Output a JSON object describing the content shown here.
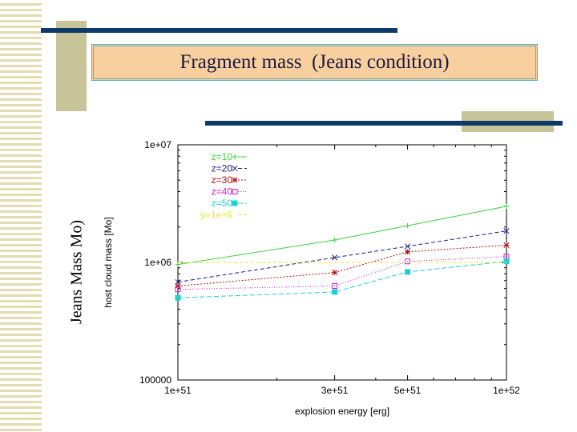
{
  "slide": {
    "title": "Fragment mass  (Jeans condition)",
    "side_label": "Jeans Mass Mo)"
  },
  "chart_data": {
    "type": "line",
    "xlabel": "explosion energy [erg]",
    "ylabel": "host cloud mass [Mo]",
    "x_scale": "log",
    "y_scale": "log",
    "xlim": [
      1e+51,
      1e+52
    ],
    "ylim": [
      100000,
      10000000
    ],
    "x_ticks": [
      {
        "value": 1e+51,
        "label": "1e+51"
      },
      {
        "value": 3e+51,
        "label": "3e+51"
      },
      {
        "value": 5e+51,
        "label": "5e+51"
      },
      {
        "value": 1e+52,
        "label": "1e+52"
      }
    ],
    "y_ticks": [
      {
        "value": 100000,
        "label": "100000"
      },
      {
        "value": 1000000,
        "label": "1e+06"
      },
      {
        "value": 10000000,
        "label": "1e+07"
      }
    ],
    "legend_position": "top-left",
    "grid": false,
    "x": [
      1e+51,
      3e+51,
      5e+51,
      1e+52
    ],
    "series": [
      {
        "name": "z=10",
        "color": "#3fd23f",
        "marker": "plus",
        "dash": "",
        "values": [
          960000,
          1550000,
          2050000,
          3000000
        ]
      },
      {
        "name": "z=20",
        "color": "#1a1a8c",
        "marker": "x",
        "dash": "5,3",
        "values": [
          680000,
          1100000,
          1370000,
          1850000
        ]
      },
      {
        "name": "z=30",
        "color": "#b01010",
        "marker": "star",
        "dash": "2,2",
        "values": [
          630000,
          820000,
          1230000,
          1400000
        ]
      },
      {
        "name": "z=40",
        "color": "#d020d0",
        "marker": "square-open",
        "dash": "1,2",
        "values": [
          590000,
          630000,
          1020000,
          1120000
        ]
      },
      {
        "name": "z=50",
        "color": "#20d0d0",
        "marker": "square-filled",
        "dash": "6,3",
        "values": [
          500000,
          560000,
          830000,
          1020000
        ]
      },
      {
        "name": "y=1e+6",
        "color": "#e6e632",
        "marker": "none",
        "dash": "4,3",
        "values": [
          1000000,
          1000000,
          1000000,
          1000000
        ]
      }
    ]
  }
}
